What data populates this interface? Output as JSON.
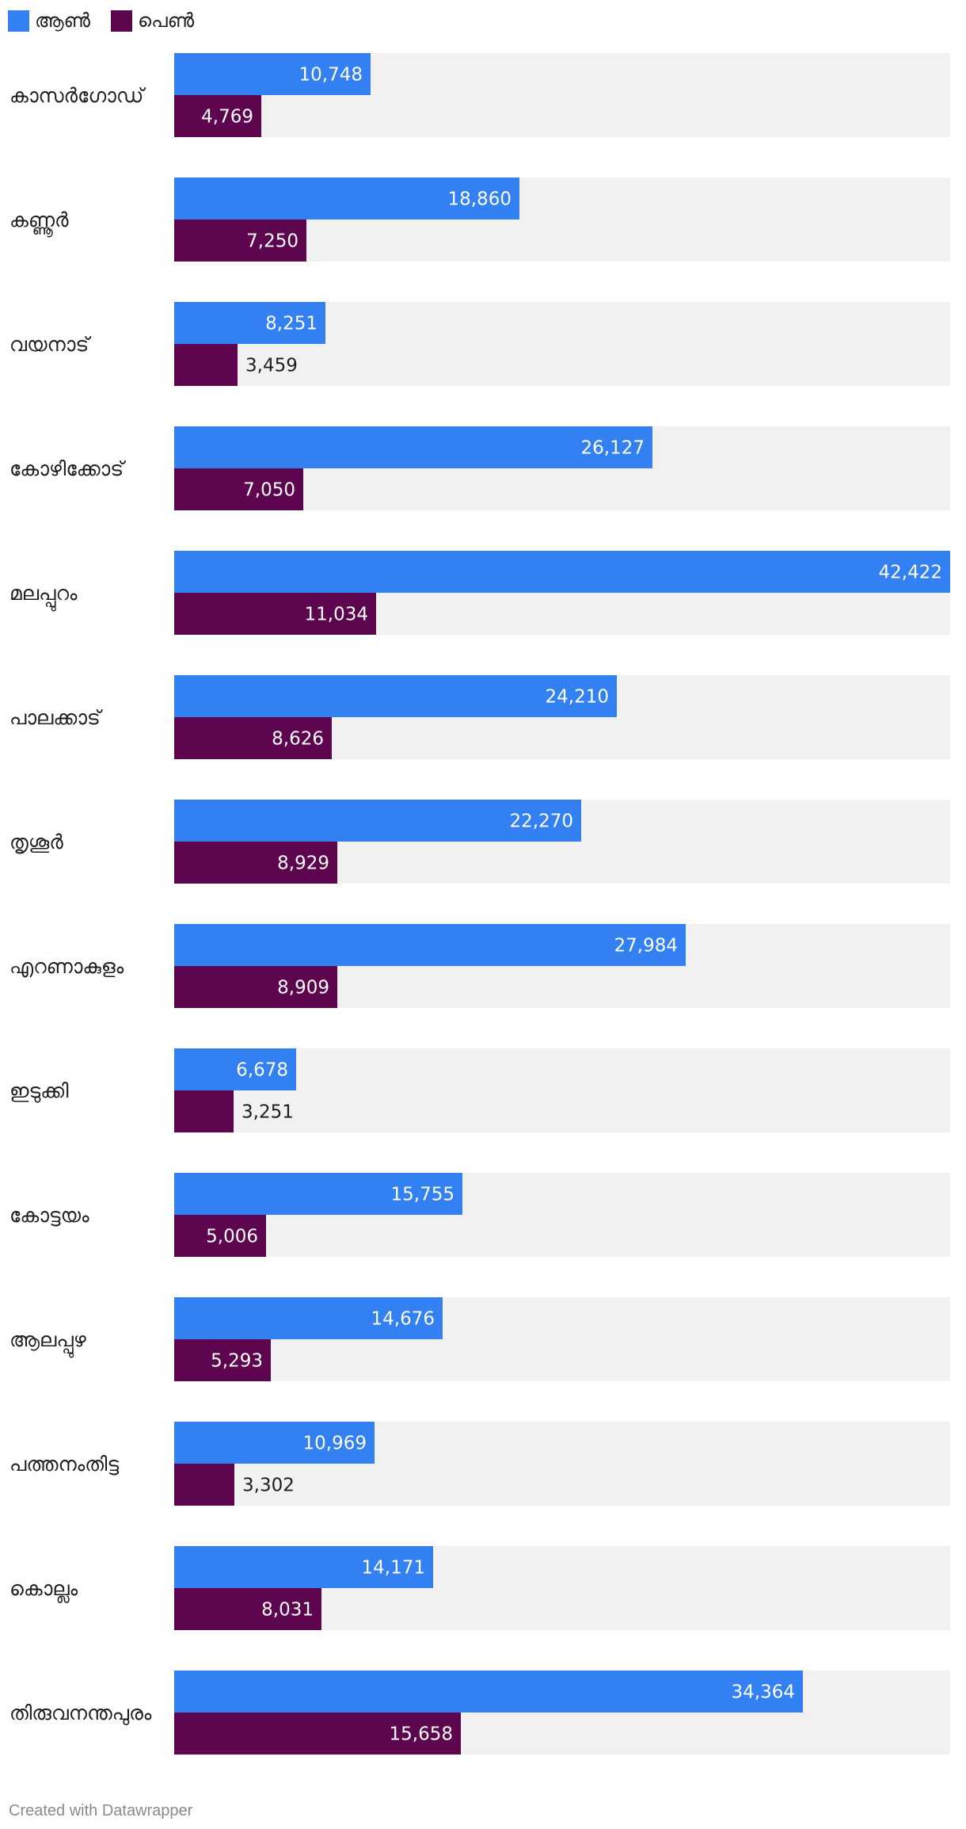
{
  "chart_data": {
    "type": "bar",
    "orientation": "horizontal",
    "categories": [
      "കാസർഗോഡ്",
      "കണ്ണൂർ",
      "വയനാട്",
      "കോഴിക്കോട്",
      "മലപ്പുറം",
      "പാലക്കാട്",
      "തൃശൂർ",
      "എറണാകുളം",
      "ഇടുക്കി",
      "കോട്ടയം",
      "ആലപ്പുഴ",
      "പത്തനംതിട്ട",
      "കൊല്ലം",
      "തിരുവനന്തപുരം"
    ],
    "series": [
      {
        "name": "ആൺ",
        "color": "#3380f2",
        "values": [
          10748,
          18860,
          8251,
          26127,
          42422,
          24210,
          22270,
          27984,
          6678,
          15755,
          14676,
          10969,
          14171,
          34364
        ],
        "labels": [
          "10,748",
          "18,860",
          "8,251",
          "26,127",
          "42,422",
          "24,210",
          "22,270",
          "27,984",
          "6,678",
          "15,755",
          "14,676",
          "10,969",
          "14,171",
          "34,364"
        ]
      },
      {
        "name": "പെൺ",
        "color": "#5e0550",
        "values": [
          4769,
          7250,
          3459,
          7050,
          11034,
          8626,
          8929,
          8909,
          3251,
          5006,
          5293,
          3302,
          8031,
          15658
        ],
        "labels": [
          "4,769",
          "7,250",
          "3,459",
          "7,050",
          "11,034",
          "8,626",
          "8,929",
          "8,909",
          "3,251",
          "5,006",
          "5,293",
          "3,302",
          "8,031",
          "15,658"
        ]
      }
    ],
    "xlim": [
      0,
      42422
    ],
    "legend": "top-left",
    "background_color": "#f2f1f2",
    "grid": false
  },
  "footer": "Created with Datawrapper"
}
